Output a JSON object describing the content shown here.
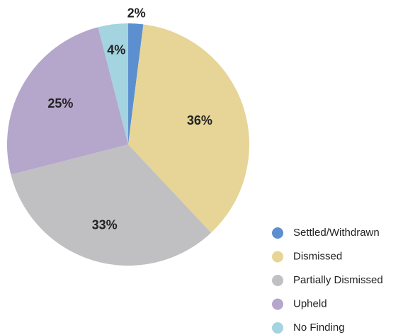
{
  "chart_data": {
    "type": "pie",
    "categories": [
      "Settled/Withdrawn",
      "Dismissed",
      "Partially Dismissed",
      "Upheld",
      "No Finding"
    ],
    "values": [
      2,
      36,
      33,
      25,
      4
    ],
    "value_labels": [
      "2%",
      "36%",
      "33%",
      "25%",
      "4%"
    ],
    "colors": [
      "#5b8fd0",
      "#e6d597",
      "#c0c0c2",
      "#b5a6cc",
      "#a3d4e0"
    ],
    "legend": "lower right"
  }
}
